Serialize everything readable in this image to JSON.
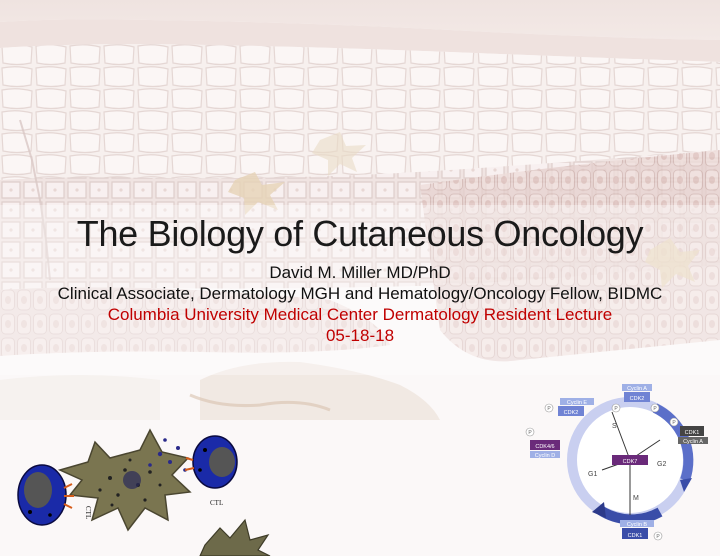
{
  "slide": {
    "title": "The Biology of Cutaneous Oncology",
    "presenter": "David M. Miller MD/PhD",
    "affiliation": "Clinical Associate, Dermatology MGH and Hematology/Oncology Fellow, BIDMC",
    "event": "Columbia University Medical Center Dermatology Resident Lecture",
    "date": "05-18-18"
  },
  "colors": {
    "title": "#1a1a1a",
    "event": "#c00000",
    "background": "#fbf8f8",
    "cell_cycle_blue": "#5b6fc9",
    "cdk_purple": "#6a2a7a"
  },
  "cell_cycle_diagram": {
    "phases": [
      "S",
      "G2",
      "M",
      "G1"
    ],
    "center": "CDK7",
    "complexes": [
      {
        "cyclin": "Cyclin E",
        "cdk": "CDK2"
      },
      {
        "cyclin": "Cyclin A",
        "cdk": "CDK2"
      },
      {
        "cyclin": "Cyclin A",
        "cdk": "CDK1"
      },
      {
        "cyclin": "Cyclin D",
        "cdk": "CDK4/6"
      },
      {
        "cyclin": "Cyclin B",
        "cdk": "CDK1"
      }
    ],
    "phospho_label": "P"
  },
  "immune_illustration": {
    "cell_label": "CTL",
    "cell_label_rotated": "CTL"
  }
}
